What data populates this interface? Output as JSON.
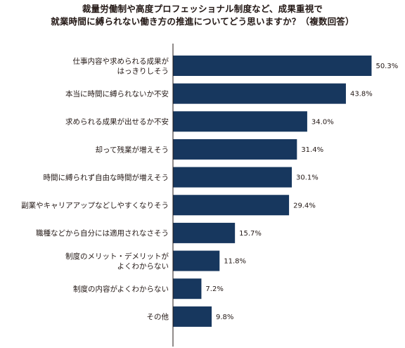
{
  "chart_data": {
    "type": "bar",
    "orientation": "horizontal",
    "title_lines": [
      "裁量労働制や高度プロフェッショナル制度など、成果重視で",
      "就業時間に縛られない働き方の推進についてどう思いますか？（複数回答）"
    ],
    "categories": [
      [
        "仕事内容や求められる成果が",
        "はっきりしそう"
      ],
      [
        "本当に時間に縛られないか不安"
      ],
      [
        "求められる成果が出せるか不安"
      ],
      [
        "却って残業が増えそう"
      ],
      [
        "時間に縛られず自由な時間が増えそう"
      ],
      [
        "副業やキャリアアップなどしやすくなりそう"
      ],
      [
        "職種などから自分には適用されなさそう"
      ],
      [
        "制度のメリット・デメリットが",
        "よくわからない"
      ],
      [
        "制度の内容がよくわからない"
      ],
      [
        "その他"
      ]
    ],
    "values": [
      50.3,
      43.8,
      34.0,
      31.4,
      30.1,
      29.4,
      15.7,
      11.8,
      7.2,
      9.8
    ],
    "value_labels": [
      "50.3%",
      "43.8%",
      "34.0%",
      "31.4%",
      "30.1%",
      "29.4%",
      "15.7%",
      "11.8%",
      "7.2%",
      "9.8%"
    ],
    "xlim": [
      0,
      52
    ],
    "bar_color": "#17375e",
    "axis_color": "#231815",
    "grid": false,
    "legend": "none"
  }
}
